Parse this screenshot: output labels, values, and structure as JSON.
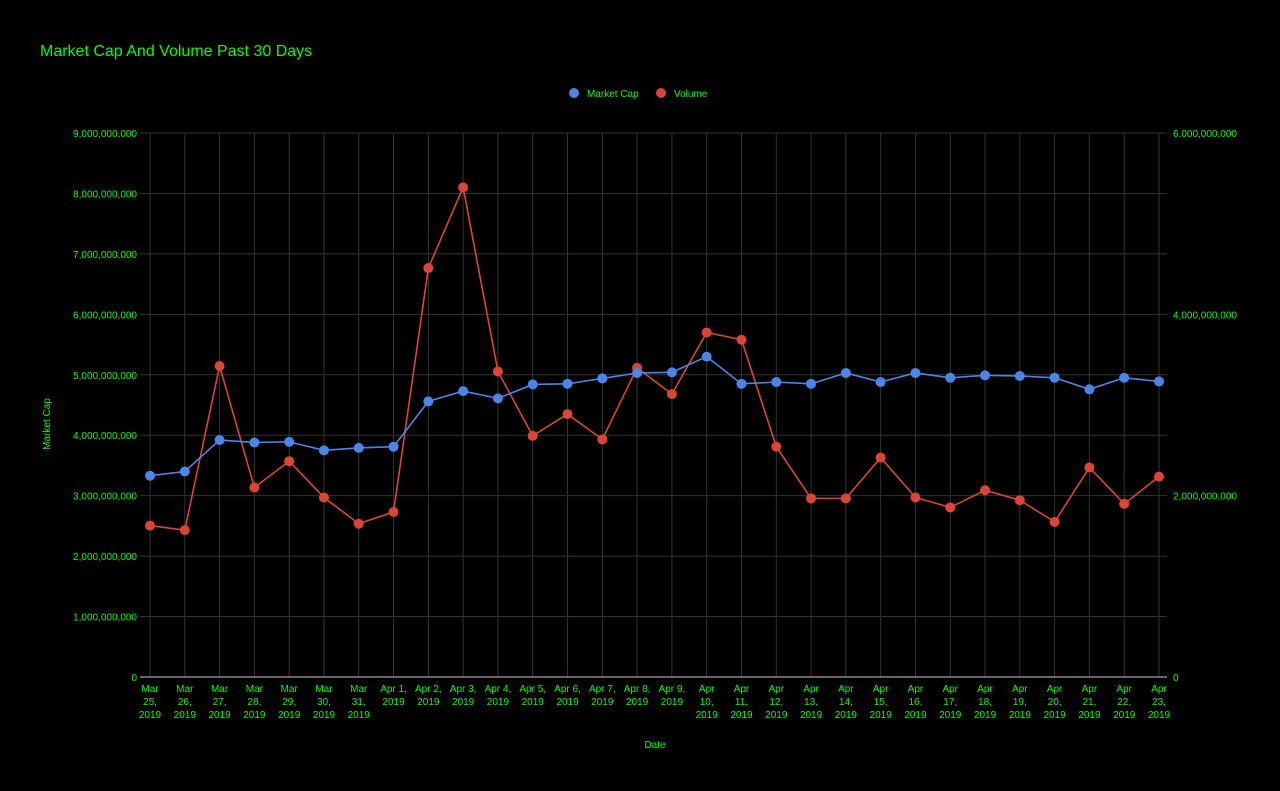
{
  "colors": {
    "background": "#000000",
    "text": "#00ff00",
    "grid": "#333333",
    "market_cap": "#4a86e8",
    "volume": "#db4437"
  },
  "chart_data": {
    "type": "line",
    "title": "Market Cap And Volume Past 30 Days",
    "xlabel": "Date",
    "ylabel": "Market Cap",
    "y2label": "",
    "legend_position": "top-center",
    "grid": true,
    "ylim": [
      0,
      9000000000
    ],
    "y2lim": [
      0,
      6000000000
    ],
    "y_ticks": [
      "0",
      "1,000,000,000",
      "2,000,000,000",
      "3,000,000,000",
      "4,000,000,000",
      "5,000,000,000",
      "6,000,000,000",
      "7,000,000,000",
      "8,000,000,000",
      "9,000,000,000"
    ],
    "y2_ticks": [
      "0",
      "2,000,000,000",
      "4,000,000,000",
      "6,000,000,000"
    ],
    "categories": [
      [
        "Mar",
        "25,",
        "2019"
      ],
      [
        "Mar",
        "26,",
        "2019"
      ],
      [
        "Mar",
        "27,",
        "2019"
      ],
      [
        "Mar",
        "28,",
        "2019"
      ],
      [
        "Mar",
        "29,",
        "2019"
      ],
      [
        "Mar",
        "30,",
        "2019"
      ],
      [
        "Mar",
        "31,",
        "2019"
      ],
      [
        "Apr 1,",
        "2019"
      ],
      [
        "Apr 2,",
        "2019"
      ],
      [
        "Apr 3,",
        "2019"
      ],
      [
        "Apr 4,",
        "2019"
      ],
      [
        "Apr 5,",
        "2019"
      ],
      [
        "Apr 6,",
        "2019"
      ],
      [
        "Apr 7,",
        "2019"
      ],
      [
        "Apr 8,",
        "2019"
      ],
      [
        "Apr 9,",
        "2019"
      ],
      [
        "Apr",
        "10,",
        "2019"
      ],
      [
        "Apr",
        "11,",
        "2019"
      ],
      [
        "Apr",
        "12,",
        "2019"
      ],
      [
        "Apr",
        "13,",
        "2019"
      ],
      [
        "Apr",
        "14,",
        "2019"
      ],
      [
        "Apr",
        "15,",
        "2019"
      ],
      [
        "Apr",
        "16,",
        "2019"
      ],
      [
        "Apr",
        "17,",
        "2019"
      ],
      [
        "Apr",
        "18,",
        "2019"
      ],
      [
        "Apr",
        "19,",
        "2019"
      ],
      [
        "Apr",
        "20,",
        "2019"
      ],
      [
        "Apr",
        "21,",
        "2019"
      ],
      [
        "Apr",
        "22,",
        "2019"
      ],
      [
        "Apr",
        "23,",
        "2019"
      ]
    ],
    "series": [
      {
        "name": "Market Cap",
        "axis": "left",
        "color": "#4a86e8",
        "values": [
          3330000000,
          3400000000,
          3920000000,
          3880000000,
          3890000000,
          3750000000,
          3790000000,
          3810000000,
          4560000000,
          4730000000,
          4610000000,
          4840000000,
          4850000000,
          4940000000,
          5030000000,
          5040000000,
          5300000000,
          4850000000,
          4880000000,
          4850000000,
          5030000000,
          4880000000,
          5030000000,
          4950000000,
          4990000000,
          4980000000,
          4950000000,
          4760000000,
          4950000000,
          4890000000
        ]
      },
      {
        "name": "Volume",
        "axis": "right",
        "color": "#db4437",
        "values": [
          1670000000,
          1620000000,
          3430000000,
          2090000000,
          2380000000,
          1980000000,
          1690000000,
          1820000000,
          4510000000,
          5400000000,
          3370000000,
          2660000000,
          2900000000,
          2620000000,
          3410000000,
          3120000000,
          3800000000,
          3720000000,
          2540000000,
          1970000000,
          1970000000,
          2420000000,
          1980000000,
          1870000000,
          2060000000,
          1950000000,
          1710000000,
          2310000000,
          1910000000,
          2210000000
        ]
      }
    ]
  }
}
